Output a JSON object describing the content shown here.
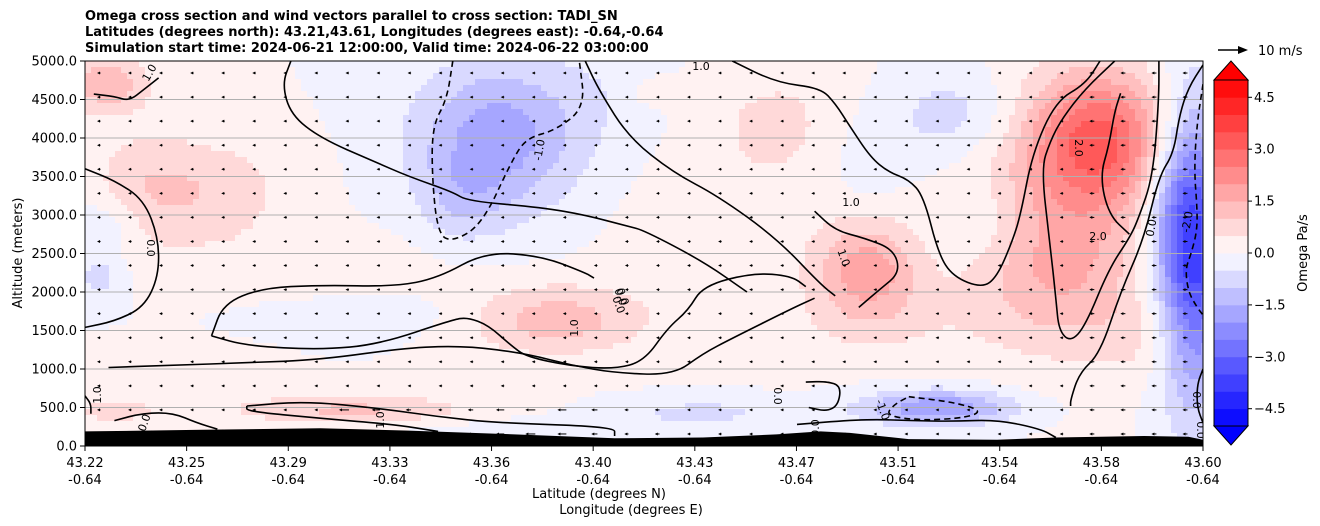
{
  "chart_data": {
    "type": "heatmap",
    "title_lines": [
      "Omega cross section and wind vectors parallel to cross section: TADI_SN",
      "Latitudes (degrees north): 43.21,43.61, Longitudes (degrees east): -0.64,-0.64",
      "Simulation start time: 2024-06-21 12:00:00, Valid time: 2024-06-22 03:00:00"
    ],
    "xlabel_1": "Latitude (degrees N)",
    "xlabel_2": "Longitude (degrees E)",
    "ylabel": "Altitude (meters)",
    "x_ticks": [
      {
        "lat": "43.22",
        "lon": "-0.64"
      },
      {
        "lat": "43.25",
        "lon": "-0.64"
      },
      {
        "lat": "43.29",
        "lon": "-0.64"
      },
      {
        "lat": "43.33",
        "lon": "-0.64"
      },
      {
        "lat": "43.36",
        "lon": "-0.64"
      },
      {
        "lat": "43.40",
        "lon": "-0.64"
      },
      {
        "lat": "43.43",
        "lon": "-0.64"
      },
      {
        "lat": "43.47",
        "lon": "-0.64"
      },
      {
        "lat": "43.51",
        "lon": "-0.64"
      },
      {
        "lat": "43.54",
        "lon": "-0.64"
      },
      {
        "lat": "43.58",
        "lon": "-0.64"
      },
      {
        "lat": "43.60",
        "lon": "-0.64"
      }
    ],
    "y_ticks": [
      "0.0",
      "500.0",
      "1000.0",
      "1500.0",
      "2000.0",
      "2500.0",
      "3000.0",
      "3500.0",
      "4000.0",
      "4500.0",
      "5000.0"
    ],
    "ylim": [
      0,
      5000
    ],
    "grid": "horizontal",
    "colorbar": {
      "label": "Omega Pa/s",
      "range": [
        -5,
        5
      ],
      "ticks": [
        "4.5",
        "3.0",
        "1.5",
        "0.0",
        "−1.5",
        "−3.0",
        "−4.5"
      ],
      "extend": "both",
      "colormap": "bwr"
    },
    "quiver_key": "10 m/s",
    "contour_labels": [
      "1.0",
      "-1.0",
      "0.0",
      "0.0",
      "1.0",
      "1.0",
      "1.0",
      "1.0",
      "2.0",
      "2.0",
      "0.0",
      "-2.0",
      "1.0",
      "1.0",
      "0.0",
      "0.0",
      "-1.0",
      "0.0",
      "0.0",
      "0.0",
      "0.0",
      "0.0"
    ],
    "contours": [
      {
        "level": 0,
        "points": [
          [
            43.22,
            3600
          ],
          [
            43.23,
            3450
          ],
          [
            43.24,
            3200
          ],
          [
            43.245,
            2700
          ],
          [
            43.245,
            2200
          ],
          [
            43.24,
            1800
          ],
          [
            43.23,
            1620
          ],
          [
            43.22,
            1540
          ]
        ]
      },
      {
        "level": 0,
        "points": [
          [
            43.22,
            650
          ],
          [
            43.222,
            550
          ],
          [
            43.222,
            420
          ]
        ]
      },
      {
        "level": 0,
        "points": [
          [
            43.23,
            330
          ],
          [
            43.24,
            430
          ],
          [
            43.25,
            430
          ],
          [
            43.258,
            300
          ],
          [
            43.265,
            220
          ]
        ]
      },
      {
        "level": 0,
        "points": [
          [
            43.263,
            1430
          ],
          [
            43.267,
            1850
          ],
          [
            43.28,
            2050
          ],
          [
            43.3,
            2090
          ],
          [
            43.325,
            2070
          ],
          [
            43.34,
            2180
          ],
          [
            43.356,
            2520
          ],
          [
            43.375,
            2470
          ],
          [
            43.39,
            2250
          ],
          [
            43.393,
            2180
          ]
        ]
      },
      {
        "level": 0,
        "points": [
          [
            43.263,
            1430
          ],
          [
            43.275,
            1300
          ],
          [
            43.3,
            1250
          ],
          [
            43.32,
            1320
          ],
          [
            43.345,
            1640
          ],
          [
            43.35,
            1670
          ],
          [
            43.357,
            1570
          ],
          [
            43.365,
            1300
          ],
          [
            43.37,
            1160
          ],
          [
            43.385,
            1040
          ],
          [
            43.4,
            1000
          ],
          [
            43.41,
            1100
          ],
          [
            43.418,
            1530
          ],
          [
            43.425,
            1760
          ],
          [
            43.43,
            2080
          ],
          [
            43.447,
            2250
          ],
          [
            43.46,
            2210
          ],
          [
            43.465,
            2070
          ]
        ]
      },
      {
        "level": 0,
        "points": [
          [
            43.228,
            1020
          ],
          [
            43.25,
            1050
          ],
          [
            43.275,
            1080
          ],
          [
            43.3,
            1120
          ],
          [
            43.33,
            1280
          ],
          [
            43.35,
            1300
          ],
          [
            43.37,
            1200
          ],
          [
            43.385,
            1050
          ],
          [
            43.4,
            950
          ],
          [
            43.42,
            920
          ],
          [
            43.43,
            1200
          ],
          [
            43.44,
            1400
          ],
          [
            43.46,
            1780
          ],
          [
            43.468,
            1920
          ]
        ]
      },
      {
        "level": 0,
        "points": [
          [
            43.275,
            520
          ],
          [
            43.295,
            580
          ],
          [
            43.32,
            490
          ],
          [
            43.34,
            380
          ],
          [
            43.36,
            300
          ],
          [
            43.4,
            250
          ],
          [
            43.4,
            130
          ]
        ]
      },
      {
        "level": 0,
        "points": [
          [
            43.275,
            520
          ],
          [
            43.275,
            450
          ],
          [
            43.3,
            360
          ],
          [
            43.325,
            280
          ],
          [
            43.34,
            190
          ]
        ]
      },
      {
        "level": 0,
        "points": [
          [
            43.465,
            830
          ],
          [
            43.472,
            840
          ],
          [
            43.477,
            780
          ],
          [
            43.476,
            530
          ],
          [
            43.472,
            450
          ],
          [
            43.466,
            500
          ]
        ]
      },
      {
        "level": 0,
        "points": [
          [
            43.462,
            280
          ],
          [
            43.485,
            350
          ],
          [
            43.5,
            330
          ],
          [
            43.515,
            320
          ],
          [
            43.53,
            340
          ],
          [
            43.545,
            220
          ],
          [
            43.55,
            110
          ]
        ]
      },
      {
        "level": -1,
        "dashed": true,
        "points": [
          [
            43.5,
            640
          ],
          [
            43.515,
            570
          ],
          [
            43.525,
            460
          ],
          [
            43.52,
            370
          ],
          [
            43.505,
            330
          ],
          [
            43.492,
            390
          ],
          [
            43.495,
            540
          ],
          [
            43.5,
            640
          ]
        ]
      },
      {
        "level": -1,
        "dashed": true,
        "points": [
          [
            43.345,
            5000
          ],
          [
            43.343,
            4500
          ],
          [
            43.338,
            4150
          ],
          [
            43.338,
            3450
          ],
          [
            43.34,
            2750
          ],
          [
            43.345,
            2650
          ],
          [
            43.355,
            2880
          ],
          [
            43.365,
            3700
          ],
          [
            43.37,
            4000
          ],
          [
            43.38,
            4100
          ],
          [
            43.39,
            4400
          ],
          [
            43.388,
            5000
          ]
        ]
      },
      {
        "level": 0,
        "points": [
          [
            43.29,
            5000
          ],
          [
            43.287,
            4700
          ],
          [
            43.29,
            4300
          ],
          [
            43.3,
            4000
          ],
          [
            43.318,
            3700
          ],
          [
            43.33,
            3500
          ],
          [
            43.345,
            3300
          ],
          [
            43.35,
            3180
          ],
          [
            43.375,
            3100
          ],
          [
            43.39,
            3000
          ],
          [
            43.405,
            2850
          ],
          [
            43.41,
            2800
          ],
          [
            43.43,
            2400
          ],
          [
            43.445,
            2000
          ]
        ]
      },
      {
        "level": 0,
        "points": [
          [
            43.39,
            5000
          ],
          [
            43.395,
            4600
          ],
          [
            43.405,
            4000
          ],
          [
            43.42,
            3550
          ],
          [
            43.435,
            3250
          ],
          [
            43.455,
            2700
          ],
          [
            43.47,
            2100
          ],
          [
            43.475,
            1950
          ]
        ]
      },
      {
        "level": 1,
        "points": [
          [
            43.468,
            3050
          ],
          [
            43.475,
            2800
          ],
          [
            43.485,
            2700
          ],
          [
            43.495,
            2550
          ],
          [
            43.497,
            2250
          ],
          [
            43.49,
            2030
          ],
          [
            43.483,
            1800
          ]
        ]
      },
      {
        "level": 1,
        "points": [
          [
            43.223,
            4570
          ],
          [
            43.23,
            4540
          ],
          [
            43.235,
            4480
          ],
          [
            43.24,
            4630
          ],
          [
            43.245,
            4780
          ]
        ]
      },
      {
        "level": 0,
        "points": [
          [
            43.44,
            5000
          ],
          [
            43.455,
            4720
          ],
          [
            43.47,
            4650
          ],
          [
            43.475,
            4450
          ],
          [
            43.48,
            4150
          ],
          [
            43.487,
            3750
          ],
          [
            43.493,
            3560
          ],
          [
            43.5,
            3460
          ],
          [
            43.505,
            3250
          ],
          [
            43.51,
            2500
          ],
          [
            43.515,
            2200
          ],
          [
            43.525,
            2050
          ],
          [
            43.53,
            2200
          ],
          [
            43.535,
            2640
          ],
          [
            43.538,
            3000
          ],
          [
            43.542,
            3800
          ],
          [
            43.55,
            4480
          ],
          [
            43.56,
            4700
          ],
          [
            43.565,
            5000
          ]
        ]
      },
      {
        "level": 0,
        "points": [
          [
            43.57,
            5000
          ],
          [
            43.56,
            4640
          ],
          [
            43.552,
            4250
          ],
          [
            43.548,
            3950
          ],
          [
            43.545,
            3600
          ],
          [
            43.548,
            2620
          ],
          [
            43.55,
            1910
          ],
          [
            43.551,
            1500
          ],
          [
            43.555,
            1350
          ],
          [
            43.56,
            1560
          ],
          [
            43.568,
            2300
          ],
          [
            43.575,
            2700
          ],
          [
            43.578,
            2950
          ],
          [
            43.583,
            3500
          ],
          [
            43.585,
            4500
          ],
          [
            43.585,
            5000
          ]
        ]
      },
      {
        "level": 2,
        "points": [
          [
            43.572,
            4580
          ],
          [
            43.57,
            4350
          ],
          [
            43.568,
            3900
          ],
          [
            43.565,
            3500
          ],
          [
            43.568,
            3000
          ],
          [
            43.575,
            2750
          ]
        ]
      },
      {
        "level": 0,
        "points": [
          [
            43.6,
            4950
          ],
          [
            43.595,
            4650
          ],
          [
            43.592,
            4300
          ],
          [
            43.59,
            3800
          ],
          [
            43.585,
            3500
          ],
          [
            43.58,
            2700
          ],
          [
            43.572,
            2000
          ],
          [
            43.565,
            1200
          ],
          [
            43.558,
            950
          ],
          [
            43.555,
            600
          ],
          [
            43.555,
            520
          ]
        ]
      },
      {
        "level": -2,
        "dashed": true,
        "points": [
          [
            43.6,
            4700
          ],
          [
            43.598,
            4200
          ],
          [
            43.597,
            3600
          ],
          [
            43.598,
            3100
          ],
          [
            43.598,
            2800
          ],
          [
            43.596,
            2500
          ],
          [
            43.594,
            2300
          ],
          [
            43.595,
            2000
          ],
          [
            43.598,
            1800
          ],
          [
            43.6,
            1700
          ]
        ]
      },
      {
        "level": 0,
        "points": [
          [
            43.6,
            1000
          ],
          [
            43.598,
            800
          ],
          [
            43.598,
            500
          ],
          [
            43.6,
            300
          ]
        ]
      }
    ]
  }
}
